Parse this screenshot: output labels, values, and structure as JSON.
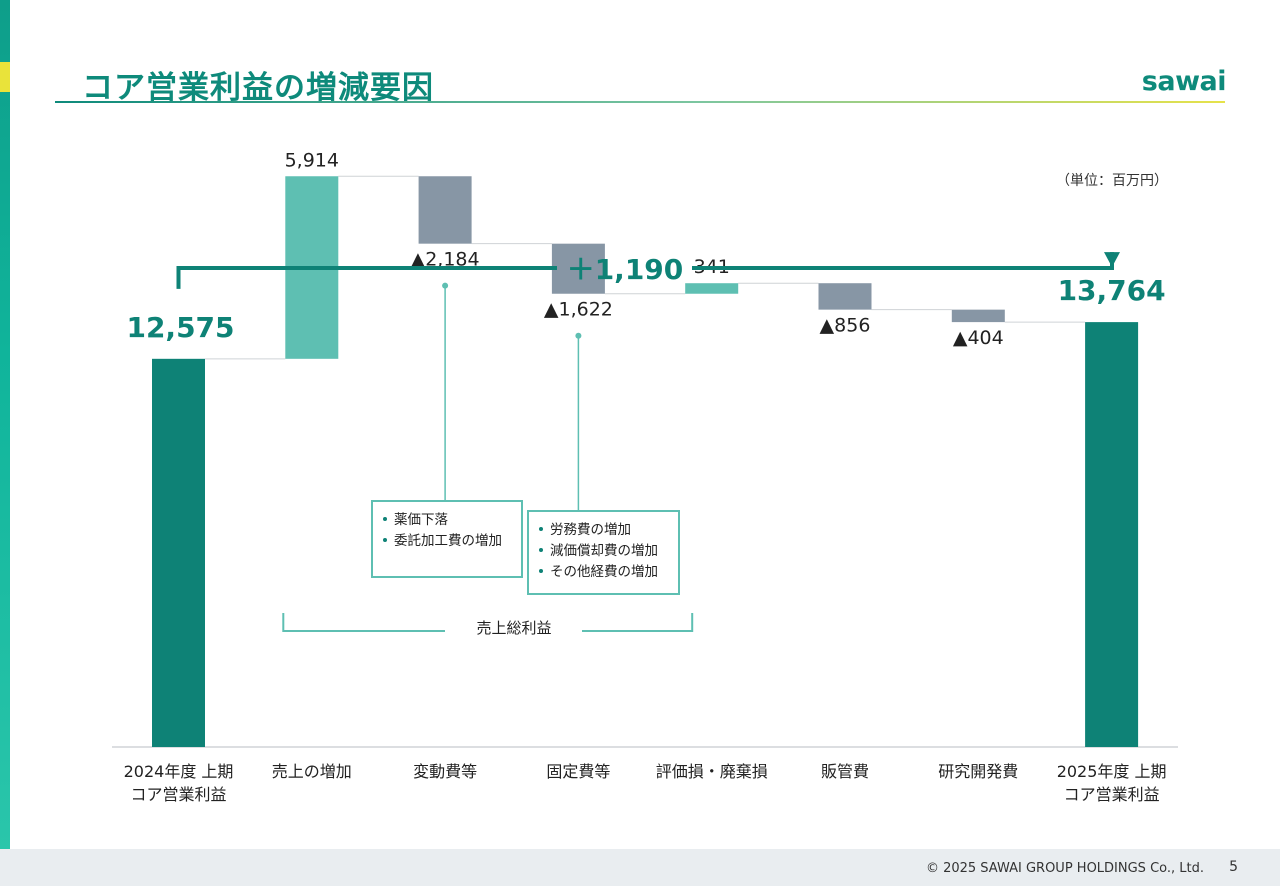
{
  "header": {
    "title": "コア営業利益の増減要因",
    "logo_text": "sawai",
    "unit_label": "（単位：百万円）"
  },
  "colors": {
    "teal_dark": "#0e8276",
    "teal_light": "#5ebfb2",
    "gray": "#8796a5",
    "connector": "#cfd3d6",
    "annot_border": "#5ebfb2"
  },
  "chart_data": {
    "type": "waterfall",
    "ylim": [
      0,
      23000
    ],
    "categories": [
      {
        "label_line1": "2024年度 上期",
        "label_line2": "コア営業利益",
        "kind": "total",
        "value": 12575,
        "display": "12,575"
      },
      {
        "label_line1": "売上の増加",
        "label_line2": "",
        "kind": "increase",
        "value": 5914,
        "display": "5,914"
      },
      {
        "label_line1": "変動費等",
        "label_line2": "",
        "kind": "decrease",
        "value": -2184,
        "display": "▲2,184"
      },
      {
        "label_line1": "固定費等",
        "label_line2": "",
        "kind": "decrease",
        "value": -1622,
        "display": "▲1,622"
      },
      {
        "label_line1": "評価損・廃棄損",
        "label_line2": "",
        "kind": "increase",
        "value": 341,
        "display": "341"
      },
      {
        "label_line1": "販管費",
        "label_line2": "",
        "kind": "decrease",
        "value": -856,
        "display": "▲856"
      },
      {
        "label_line1": "研究開発費",
        "label_line2": "",
        "kind": "decrease",
        "value": -404,
        "display": "▲404"
      },
      {
        "label_line1": "2025年度 上期",
        "label_line2": "コア営業利益",
        "kind": "total",
        "value": 13764,
        "display": "13,764"
      }
    ],
    "total_change": "＋1,190",
    "annotations": [
      {
        "target_index": 2,
        "items": [
          "薬価下落",
          "委託加工費の増加"
        ]
      },
      {
        "target_index": 3,
        "items": [
          "労務費の増加",
          "減価償却費の増加",
          "その他経費の増加"
        ]
      }
    ],
    "group_bracket": {
      "from_index": 1,
      "to_index": 4,
      "label": "売上総利益"
    }
  },
  "footer": {
    "copyright": "© 2025 SAWAI GROUP HOLDINGS Co., Ltd.",
    "page_number": "5"
  }
}
